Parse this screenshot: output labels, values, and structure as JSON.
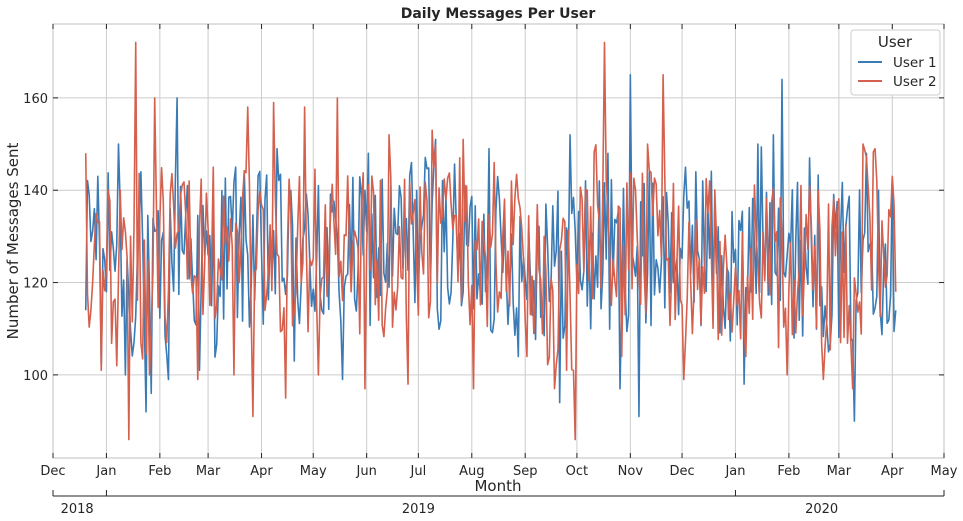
{
  "chart_data": {
    "type": "line",
    "title": "Daily Messages Per User",
    "xlabel": "Month",
    "ylabel": "Number of Messages Sent",
    "xlim": [
      "2018-12-01",
      "2020-05-01"
    ],
    "ylim": [
      82,
      176
    ],
    "y_ticks": [
      100,
      120,
      140,
      160
    ],
    "x_ticks": [
      {
        "date": "2018-12-01",
        "label": "Dec"
      },
      {
        "date": "2019-01-01",
        "label": "Jan"
      },
      {
        "date": "2019-02-01",
        "label": "Feb"
      },
      {
        "date": "2019-03-01",
        "label": "Mar"
      },
      {
        "date": "2019-04-01",
        "label": "Apr"
      },
      {
        "date": "2019-05-01",
        "label": "May"
      },
      {
        "date": "2019-06-01",
        "label": "Jun"
      },
      {
        "date": "2019-07-01",
        "label": "Jul"
      },
      {
        "date": "2019-08-01",
        "label": "Aug"
      },
      {
        "date": "2019-09-01",
        "label": "Sep"
      },
      {
        "date": "2019-10-01",
        "label": "Oct"
      },
      {
        "date": "2019-11-01",
        "label": "Nov"
      },
      {
        "date": "2019-12-01",
        "label": "Dec"
      },
      {
        "date": "2020-01-01",
        "label": "Jan"
      },
      {
        "date": "2020-02-01",
        "label": "Feb"
      },
      {
        "date": "2020-03-01",
        "label": "Mar"
      },
      {
        "date": "2020-04-01",
        "label": "Apr"
      },
      {
        "date": "2020-05-01",
        "label": "May"
      }
    ],
    "year_axis": [
      {
        "label": "2018",
        "date": "2018-12-15"
      },
      {
        "label": "2019",
        "date": "2019-07-01"
      },
      {
        "label": "2020",
        "date": "2020-02-20"
      }
    ],
    "year_ticks": [
      "2018-12-01",
      "2019-01-01",
      "2020-01-01",
      "2020-05-01"
    ],
    "grid": true,
    "legend": {
      "title": "User",
      "position": "top-right"
    },
    "series": [
      {
        "name": "User 1",
        "color": "#3a7bb5",
        "start_date": "2018-12-20",
        "end_date": "2020-04-03",
        "anchors": [
          [
            "2018-12-20",
            114
          ],
          [
            "2018-12-22",
            139
          ],
          [
            "2018-12-25",
            136
          ],
          [
            "2018-12-27",
            143
          ],
          [
            "2018-12-29",
            102
          ],
          [
            "2018-12-31",
            125
          ],
          [
            "2019-01-04",
            131
          ],
          [
            "2019-01-08",
            150
          ],
          [
            "2019-01-12",
            100
          ],
          [
            "2019-01-17",
            107
          ],
          [
            "2019-01-21",
            144
          ],
          [
            "2019-01-24",
            92
          ],
          [
            "2019-01-27",
            96
          ],
          [
            "2019-02-06",
            99
          ],
          [
            "2019-02-11",
            160
          ],
          [
            "2019-02-17",
            141
          ],
          [
            "2019-02-24",
            101
          ],
          [
            "2019-03-08",
            117
          ],
          [
            "2019-03-17",
            145
          ],
          [
            "2019-04-02",
            111
          ],
          [
            "2019-04-10",
            149
          ],
          [
            "2019-04-20",
            103
          ],
          [
            "2019-05-04",
            141
          ],
          [
            "2019-05-18",
            99
          ],
          [
            "2019-06-02",
            148
          ],
          [
            "2019-06-14",
            119
          ],
          [
            "2019-06-27",
            146
          ],
          [
            "2019-07-11",
            151
          ],
          [
            "2019-07-26",
            115
          ],
          [
            "2019-08-11",
            149
          ],
          [
            "2019-08-28",
            104
          ],
          [
            "2019-09-13",
            137
          ],
          [
            "2019-09-21",
            94
          ],
          [
            "2019-09-27",
            152
          ],
          [
            "2019-10-09",
            110
          ],
          [
            "2019-10-19",
            148
          ],
          [
            "2019-10-26",
            97
          ],
          [
            "2019-11-01",
            165
          ],
          [
            "2019-11-06",
            91
          ],
          [
            "2019-11-12",
            144
          ],
          [
            "2019-11-26",
            120
          ],
          [
            "2019-12-09",
            144
          ],
          [
            "2019-12-21",
            122
          ],
          [
            "2020-01-06",
            98
          ],
          [
            "2020-01-14",
            150
          ],
          [
            "2020-01-23",
            152
          ],
          [
            "2020-01-28",
            164
          ],
          [
            "2020-02-04",
            108
          ],
          [
            "2020-02-13",
            147
          ],
          [
            "2020-02-24",
            105
          ],
          [
            "2020-03-05",
            132
          ],
          [
            "2020-03-10",
            90
          ],
          [
            "2020-03-17",
            148
          ],
          [
            "2020-03-24",
            140
          ],
          [
            "2020-04-03",
            114
          ]
        ]
      },
      {
        "name": "User 2",
        "color": "#d4604d",
        "start_date": "2018-12-20",
        "end_date": "2020-04-03",
        "anchors": [
          [
            "2018-12-20",
            148
          ],
          [
            "2018-12-23",
            114
          ],
          [
            "2018-12-27",
            133
          ],
          [
            "2018-12-29",
            101
          ],
          [
            "2019-01-02",
            140
          ],
          [
            "2019-01-07",
            102
          ],
          [
            "2019-01-12",
            131
          ],
          [
            "2019-01-14",
            86
          ],
          [
            "2019-01-18",
            172
          ],
          [
            "2019-01-21",
            107
          ],
          [
            "2019-01-26",
            100
          ],
          [
            "2019-01-29",
            160
          ],
          [
            "2019-02-05",
            107
          ],
          [
            "2019-02-18",
            142
          ],
          [
            "2019-02-23",
            99
          ],
          [
            "2019-03-04",
            145
          ],
          [
            "2019-03-16",
            100
          ],
          [
            "2019-03-24",
            158
          ],
          [
            "2019-03-27",
            91
          ],
          [
            "2019-04-08",
            159
          ],
          [
            "2019-04-15",
            95
          ],
          [
            "2019-04-26",
            158
          ],
          [
            "2019-05-04",
            100
          ],
          [
            "2019-05-15",
            160
          ],
          [
            "2019-05-31",
            97
          ],
          [
            "2019-06-14",
            152
          ],
          [
            "2019-06-25",
            98
          ],
          [
            "2019-07-09",
            153
          ],
          [
            "2019-07-27",
            151
          ],
          [
            "2019-08-02",
            97
          ],
          [
            "2019-08-14",
            146
          ],
          [
            "2019-09-02",
            104
          ],
          [
            "2019-09-18",
            97
          ],
          [
            "2019-09-30",
            86
          ],
          [
            "2019-10-07",
            140
          ],
          [
            "2019-10-17",
            172
          ],
          [
            "2019-10-27",
            104
          ],
          [
            "2019-11-11",
            150
          ],
          [
            "2019-11-20",
            165
          ],
          [
            "2019-12-02",
            99
          ],
          [
            "2019-12-17",
            142
          ],
          [
            "2020-01-07",
            104
          ],
          [
            "2020-01-25",
            131
          ],
          [
            "2020-01-31",
            100
          ],
          [
            "2020-02-08",
            141
          ],
          [
            "2020-02-21",
            99
          ],
          [
            "2020-03-02",
            107
          ],
          [
            "2020-03-09",
            97
          ],
          [
            "2020-03-15",
            150
          ],
          [
            "2020-03-22",
            149
          ],
          [
            "2020-03-28",
            119
          ],
          [
            "2020-04-01",
            143
          ],
          [
            "2020-04-03",
            118
          ]
        ]
      }
    ]
  }
}
